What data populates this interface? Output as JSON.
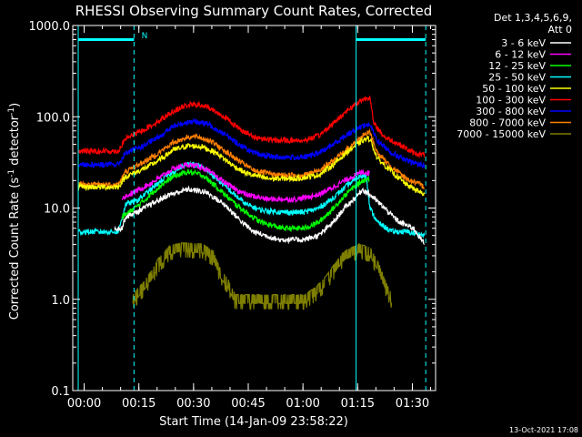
{
  "chart_data": {
    "type": "line",
    "title": "RHESSI Observing Summary Count Rates, Corrected",
    "xlabel": "Start Time (14-Jan-09 23:58:22)",
    "ylabel_main": "Corrected Count Rate (s",
    "ylabel_sup": "-1",
    "ylabel_mid": " detector",
    "ylabel_end": ")",
    "x_range_minutes": [
      -1.5,
      98
    ],
    "ylim": [
      0.1,
      1000
    ],
    "y_scale": "log",
    "x_ticks": [
      {
        "minute": 1.63,
        "label": "00:00"
      },
      {
        "minute": 16.63,
        "label": "00:15"
      },
      {
        "minute": 31.63,
        "label": "00:30"
      },
      {
        "minute": 46.63,
        "label": "00:45"
      },
      {
        "minute": 61.63,
        "label": "01:00"
      },
      {
        "minute": 76.63,
        "label": "01:15"
      },
      {
        "minute": 91.63,
        "label": "01:30"
      }
    ],
    "y_ticks": [
      {
        "value": 1000,
        "label": "1000.0"
      },
      {
        "value": 100,
        "label": "100.0"
      },
      {
        "value": 10,
        "label": "10.0"
      },
      {
        "value": 1,
        "label": "1.0"
      },
      {
        "value": 0.1,
        "label": "0.1"
      }
    ],
    "detectors_label": "Det 1,3,4,5,6,9,",
    "attenuator_label": "Att 0",
    "night_marker": "N",
    "cyan_solid_lines_minutes": [
      0,
      76.2
    ],
    "cyan_dashed_lines_minutes": [
      15.3,
      95.3
    ],
    "cyan_bars": [
      {
        "from": 0,
        "to": 15.3,
        "value": 700
      },
      {
        "from": 76.2,
        "to": 95.3,
        "value": 700
      }
    ],
    "footer_date": "13-Oct-2021 17:08",
    "series": [
      {
        "name": "3 - 6 keV",
        "color": "#ffffff",
        "points": [
          [
            10,
            6
          ],
          [
            12,
            6
          ],
          [
            13,
            8
          ],
          [
            16,
            9
          ],
          [
            20,
            11
          ],
          [
            25,
            14
          ],
          [
            30,
            16
          ],
          [
            35,
            15
          ],
          [
            40,
            11
          ],
          [
            45,
            7
          ],
          [
            48,
            5.5
          ],
          [
            55,
            4.5
          ],
          [
            62,
            4.5
          ],
          [
            66,
            5
          ],
          [
            70,
            7
          ],
          [
            73,
            10
          ],
          [
            76,
            13
          ],
          [
            78,
            16
          ],
          [
            80,
            14
          ],
          [
            84,
            10
          ],
          [
            88,
            7
          ],
          [
            92,
            6
          ],
          [
            95,
            4
          ]
        ]
      },
      {
        "name": "6 - 12 keV",
        "color": "#ff00ff",
        "points": [
          [
            12,
            13
          ],
          [
            14,
            14
          ],
          [
            18,
            17
          ],
          [
            22,
            21
          ],
          [
            26,
            27
          ],
          [
            30,
            30
          ],
          [
            34,
            28
          ],
          [
            38,
            22
          ],
          [
            42,
            17
          ],
          [
            46,
            14
          ],
          [
            52,
            12.5
          ],
          [
            60,
            12.5
          ],
          [
            66,
            14
          ],
          [
            70,
            17
          ],
          [
            74,
            21
          ],
          [
            78,
            25
          ],
          [
            80,
            24
          ]
        ]
      },
      {
        "name": "12 - 25 keV",
        "color": "#00ff00",
        "points": [
          [
            12,
            8
          ],
          [
            14,
            9
          ],
          [
            18,
            12
          ],
          [
            22,
            17
          ],
          [
            26,
            22
          ],
          [
            30,
            25
          ],
          [
            34,
            23
          ],
          [
            38,
            17
          ],
          [
            42,
            12
          ],
          [
            46,
            9
          ],
          [
            50,
            7
          ],
          [
            56,
            6
          ],
          [
            62,
            6
          ],
          [
            66,
            7
          ],
          [
            70,
            10
          ],
          [
            74,
            15
          ],
          [
            78,
            20
          ],
          [
            80,
            21
          ]
        ]
      },
      {
        "name": "25 - 50 keV",
        "color": "#00ffff",
        "points": [
          [
            0,
            5.5
          ],
          [
            11,
            5.5
          ],
          [
            13,
            11
          ],
          [
            16,
            12
          ],
          [
            20,
            16
          ],
          [
            24,
            22
          ],
          [
            28,
            28
          ],
          [
            31,
            31
          ],
          [
            34,
            28
          ],
          [
            38,
            21
          ],
          [
            42,
            15
          ],
          [
            46,
            11
          ],
          [
            50,
            9.5
          ],
          [
            56,
            9
          ],
          [
            62,
            9
          ],
          [
            66,
            10
          ],
          [
            70,
            13
          ],
          [
            74,
            18
          ],
          [
            77,
            22
          ],
          [
            79,
            23
          ],
          [
            80,
            10
          ],
          [
            82,
            7
          ],
          [
            86,
            5.5
          ],
          [
            90,
            5.5
          ],
          [
            95,
            5
          ]
        ]
      },
      {
        "name": "50 - 100 keV",
        "color": "#ffff00",
        "points": [
          [
            0,
            17
          ],
          [
            11,
            17
          ],
          [
            13,
            22
          ],
          [
            18,
            27
          ],
          [
            22,
            33
          ],
          [
            26,
            43
          ],
          [
            30,
            48
          ],
          [
            34,
            47
          ],
          [
            38,
            40
          ],
          [
            42,
            30
          ],
          [
            46,
            24
          ],
          [
            52,
            21
          ],
          [
            60,
            21
          ],
          [
            66,
            23
          ],
          [
            70,
            30
          ],
          [
            74,
            42
          ],
          [
            78,
            55
          ],
          [
            80,
            58
          ],
          [
            82,
            35
          ],
          [
            86,
            25
          ],
          [
            90,
            18
          ],
          [
            95,
            14
          ]
        ]
      },
      {
        "name": "100 - 300 keV",
        "color": "#ff0000",
        "points": [
          [
            0,
            42
          ],
          [
            11,
            42
          ],
          [
            13,
            58
          ],
          [
            18,
            72
          ],
          [
            22,
            90
          ],
          [
            26,
            115
          ],
          [
            30,
            135
          ],
          [
            33,
            135
          ],
          [
            36,
            125
          ],
          [
            40,
            100
          ],
          [
            44,
            75
          ],
          [
            48,
            60
          ],
          [
            54,
            55
          ],
          [
            62,
            55
          ],
          [
            66,
            62
          ],
          [
            70,
            85
          ],
          [
            74,
            120
          ],
          [
            78,
            155
          ],
          [
            80,
            165
          ],
          [
            81,
            85
          ],
          [
            84,
            60
          ],
          [
            88,
            50
          ],
          [
            92,
            40
          ],
          [
            95,
            38
          ]
        ]
      },
      {
        "name": "300 - 800 keV",
        "color": "#0000ff",
        "points": [
          [
            0,
            30
          ],
          [
            11,
            30
          ],
          [
            13,
            40
          ],
          [
            18,
            48
          ],
          [
            22,
            60
          ],
          [
            26,
            78
          ],
          [
            30,
            88
          ],
          [
            33,
            88
          ],
          [
            36,
            82
          ],
          [
            40,
            65
          ],
          [
            44,
            50
          ],
          [
            48,
            40
          ],
          [
            54,
            36
          ],
          [
            62,
            36
          ],
          [
            66,
            40
          ],
          [
            70,
            50
          ],
          [
            74,
            65
          ],
          [
            78,
            80
          ],
          [
            80,
            82
          ],
          [
            82,
            55
          ],
          [
            86,
            40
          ],
          [
            90,
            33
          ],
          [
            95,
            29
          ]
        ]
      },
      {
        "name": "800 - 7000 keV",
        "color": "#ff7f00",
        "points": [
          [
            0,
            18
          ],
          [
            11,
            18
          ],
          [
            13,
            25
          ],
          [
            18,
            32
          ],
          [
            22,
            40
          ],
          [
            26,
            52
          ],
          [
            30,
            60
          ],
          [
            33,
            60
          ],
          [
            36,
            55
          ],
          [
            40,
            43
          ],
          [
            44,
            33
          ],
          [
            48,
            26
          ],
          [
            54,
            23
          ],
          [
            62,
            23
          ],
          [
            66,
            26
          ],
          [
            70,
            33
          ],
          [
            74,
            45
          ],
          [
            78,
            62
          ],
          [
            80,
            68
          ],
          [
            82,
            40
          ],
          [
            86,
            28
          ],
          [
            90,
            21
          ],
          [
            95,
            17
          ]
        ]
      },
      {
        "name": "7000 - 15000 keV",
        "color": "#7f7f00",
        "points": [
          [
            15,
            1
          ],
          [
            18,
            1.4
          ],
          [
            20,
            1.8
          ],
          [
            22,
            2.5
          ],
          [
            25,
            3.4
          ],
          [
            28,
            3.7
          ],
          [
            34,
            3.6
          ],
          [
            37,
            3
          ],
          [
            39,
            1.9
          ],
          [
            41,
            1.5
          ],
          [
            43,
            1
          ],
          [
            62,
            1
          ],
          [
            65,
            1.2
          ],
          [
            68,
            1.6
          ],
          [
            71,
            2.4
          ],
          [
            73,
            3
          ],
          [
            77,
            3.6
          ],
          [
            80,
            3.3
          ],
          [
            82,
            2.4
          ],
          [
            84,
            1.5
          ],
          [
            86,
            1
          ]
        ]
      }
    ]
  }
}
